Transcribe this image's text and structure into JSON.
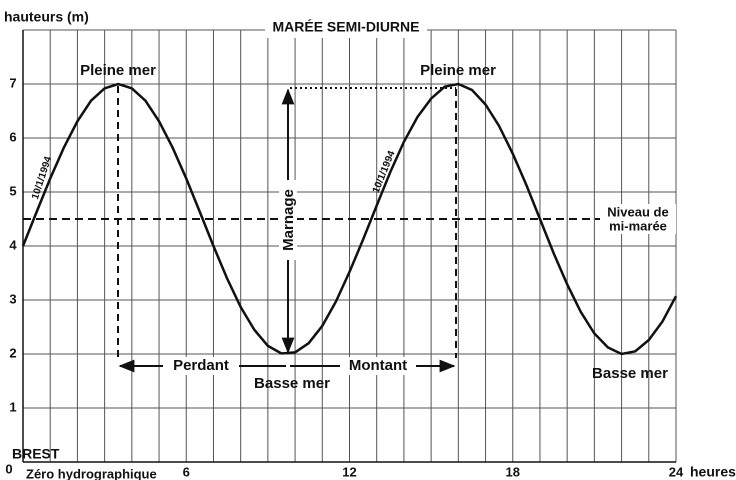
{
  "chart_data": {
    "type": "line",
    "title": "MARÉE SEMI-DIURNE",
    "y_label": "hauteurs (m)",
    "x_label": "heures",
    "station": "BREST",
    "datum_label": "Zéro hydrographique",
    "xlim": [
      0,
      24
    ],
    "ylim": [
      0,
      8
    ],
    "xticks": [
      0,
      6,
      12,
      18,
      24
    ],
    "yticks": [
      0,
      1,
      2,
      3,
      4,
      5,
      6,
      7
    ],
    "xgrid": [
      0,
      1,
      2,
      3,
      4,
      5,
      6,
      7,
      8,
      9,
      10,
      11,
      12,
      13,
      14,
      15,
      16,
      17,
      18,
      19,
      20,
      21,
      22,
      23,
      24
    ],
    "ygrid": [
      0,
      1,
      2,
      3,
      4,
      5,
      6,
      7,
      8
    ],
    "grid": true,
    "x": [
      0,
      0.5,
      1,
      1.5,
      2,
      2.5,
      3,
      3.5,
      4,
      4.5,
      5,
      5.5,
      6,
      6.5,
      7,
      7.5,
      8,
      8.5,
      9,
      9.5,
      10,
      10.5,
      11,
      11.5,
      12,
      12.5,
      13,
      13.5,
      14,
      14.5,
      15,
      15.5,
      16,
      16.5,
      17,
      17.5,
      18,
      18.5,
      19,
      19.5,
      20,
      20.5,
      21,
      21.5,
      22,
      22.5,
      23,
      23.5,
      24
    ],
    "series": [
      {
        "name": "10/1/1994",
        "color": "#111111",
        "values": [
          4.0,
          4.63,
          5.25,
          5.82,
          6.31,
          6.69,
          6.92,
          7.0,
          6.92,
          6.69,
          6.31,
          5.82,
          5.25,
          4.63,
          4.0,
          3.4,
          2.87,
          2.45,
          2.15,
          2.01,
          2.03,
          2.2,
          2.52,
          2.97,
          3.52,
          4.12,
          4.75,
          5.37,
          5.93,
          6.39,
          6.73,
          6.95,
          7.0,
          6.89,
          6.62,
          6.22,
          5.71,
          5.13,
          4.5,
          3.87,
          3.29,
          2.78,
          2.38,
          2.12,
          2.0,
          2.05,
          2.26,
          2.6,
          3.07
        ]
      }
    ],
    "mid_level": {
      "value": 4.5,
      "label_line1": "Niveau de",
      "label_line2": "mi-marée"
    },
    "annotations": {
      "high_1": "Pleine mer",
      "high_2": "Pleine mer",
      "low_1": "Basse mer",
      "low_2": "Basse mer",
      "falling": "Perdant",
      "rising": "Montant",
      "range": "Marnage"
    }
  }
}
